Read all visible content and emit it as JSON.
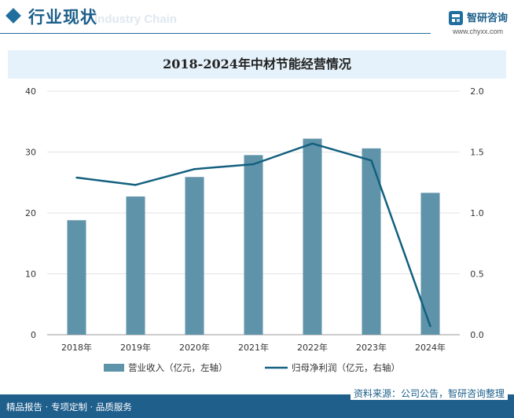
{
  "header": {
    "section_title": "行业现状",
    "watermark_text": "Industry Chain",
    "brand_name": "智研咨询",
    "brand_url": "www.chyxx.com"
  },
  "footer": {
    "tagline": "精品报告 · 专项定制 · 品质服务",
    "source": "资料来源：公司公告，智研咨询整理"
  },
  "colors": {
    "bar": "#5f93a9",
    "line": "#13607f",
    "brand": "#1f6e9e"
  },
  "chart_data": {
    "type": "bar+line",
    "title": "2018-2024年中材节能经营情况",
    "categories": [
      "2018年",
      "2019年",
      "2020年",
      "2021年",
      "2022年",
      "2023年",
      "2024年"
    ],
    "series": [
      {
        "name": "营业收入（亿元，左轴）",
        "type": "bar",
        "axis": "left",
        "values": [
          18.8,
          22.7,
          25.9,
          29.5,
          32.2,
          30.6,
          23.3
        ]
      },
      {
        "name": "归母净利润（亿元，右轴）",
        "type": "line",
        "axis": "right",
        "values": [
          1.29,
          1.23,
          1.36,
          1.4,
          1.57,
          1.43,
          0.07
        ]
      }
    ],
    "ylim_left": [
      0,
      40
    ],
    "yticks_left": [
      "0",
      "10",
      "20",
      "30",
      "40"
    ],
    "ylim_right": [
      0,
      2.0
    ],
    "yticks_right": [
      "0.0",
      "0.5",
      "1.0",
      "1.5",
      "2.0"
    ],
    "grid": true,
    "legend": "bottom"
  }
}
